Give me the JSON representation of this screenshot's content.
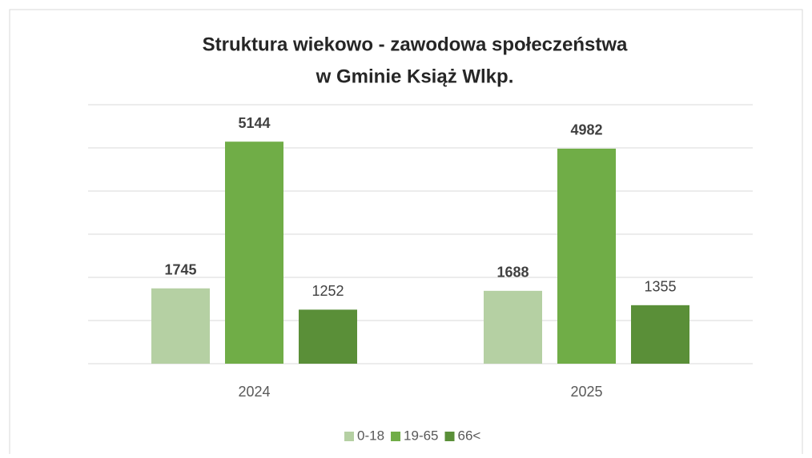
{
  "chart_data": {
    "type": "bar",
    "title": [
      "Struktura wiekowo - zawodowa społeczeństwa",
      "w Gminie Książ Wlkp."
    ],
    "categories": [
      "2024",
      "2025"
    ],
    "series": [
      {
        "name": "0-18",
        "color": "#b5d0a3",
        "values": [
          1745,
          1688
        ],
        "label_bold": true
      },
      {
        "name": "19-65",
        "color": "#70ad47",
        "values": [
          5144,
          4982
        ],
        "label_bold": true
      },
      {
        "name": "66<",
        "color": "#5a8f38",
        "values": [
          1252,
          1355
        ],
        "label_bold": false
      }
    ],
    "ylim": [
      0,
      6000
    ],
    "yticks": [
      0,
      1000,
      2000,
      3000,
      4000,
      5000,
      6000
    ],
    "grid": true,
    "legend": "bottom"
  }
}
